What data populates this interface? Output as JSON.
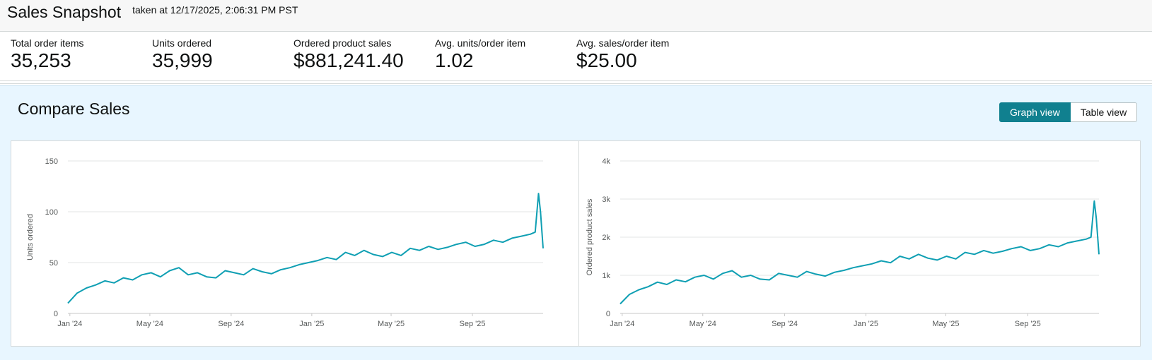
{
  "header": {
    "title": "Sales Snapshot",
    "taken_at": "taken at 12/17/2025, 2:06:31 PM PST"
  },
  "metrics": [
    {
      "label": "Total order items",
      "value": "35,253"
    },
    {
      "label": "Units ordered",
      "value": "35,999"
    },
    {
      "label": "Ordered product sales",
      "value": "$881,241.40"
    },
    {
      "label": "Avg. units/order item",
      "value": "1.02"
    },
    {
      "label": "Avg. sales/order item",
      "value": "$25.00"
    }
  ],
  "compare": {
    "title": "Compare Sales",
    "graph_view_label": "Graph view",
    "table_view_label": "Table view",
    "active_view": "Graph view"
  },
  "colors": {
    "series": "#0f9fb3",
    "active_button": "#10808f",
    "panel_bg": "#e8f6ff"
  },
  "chart_data": [
    {
      "type": "line",
      "ylabel": "Units ordered",
      "ylim": [
        0,
        150
      ],
      "yticks": [
        "0",
        "50",
        "100",
        "150"
      ],
      "xticks": [
        "Jan '24",
        "May '24",
        "Sep '24",
        "Jan '25",
        "May '25",
        "Sep '25"
      ],
      "xtick_dates": [
        "2024-01-01",
        "2024-05-01",
        "2024-09-01",
        "2025-01-01",
        "2025-05-01",
        "2025-09-01"
      ],
      "x_range": [
        "2023-12-29",
        "2025-12-17"
      ],
      "grid": true,
      "series": [
        {
          "x": [
            "2023-12-29",
            "2024-01-12",
            "2024-01-26",
            "2024-02-09",
            "2024-02-23",
            "2024-03-08",
            "2024-03-22",
            "2024-04-05",
            "2024-04-19",
            "2024-05-03",
            "2024-05-17",
            "2024-05-31",
            "2024-06-14",
            "2024-06-28",
            "2024-07-12",
            "2024-07-26",
            "2024-08-09",
            "2024-08-23",
            "2024-09-06",
            "2024-09-20",
            "2024-10-04",
            "2024-10-18",
            "2024-11-01",
            "2024-11-15",
            "2024-11-29",
            "2024-12-13",
            "2024-12-27",
            "2025-01-10",
            "2025-01-24",
            "2025-02-07",
            "2025-02-21",
            "2025-03-07",
            "2025-03-21",
            "2025-04-04",
            "2025-04-18",
            "2025-05-02",
            "2025-05-16",
            "2025-05-30",
            "2025-06-13",
            "2025-06-27",
            "2025-07-11",
            "2025-07-25",
            "2025-08-08",
            "2025-08-22",
            "2025-09-05",
            "2025-09-19",
            "2025-10-03",
            "2025-10-17",
            "2025-10-31",
            "2025-11-14",
            "2025-11-28",
            "2025-12-05",
            "2025-12-10",
            "2025-12-13",
            "2025-12-17"
          ],
          "values": [
            10,
            20,
            25,
            28,
            32,
            30,
            35,
            33,
            38,
            40,
            36,
            42,
            45,
            38,
            40,
            36,
            35,
            42,
            40,
            38,
            44,
            41,
            39,
            43,
            45,
            48,
            50,
            52,
            55,
            53,
            60,
            57,
            62,
            58,
            56,
            60,
            57,
            64,
            62,
            66,
            63,
            65,
            68,
            70,
            66,
            68,
            72,
            70,
            74,
            76,
            78,
            80,
            118,
            100,
            64
          ]
        }
      ]
    },
    {
      "type": "line",
      "ylabel": "Ordered product sales",
      "ylim": [
        0,
        4000
      ],
      "yticks": [
        "0",
        "1k",
        "2k",
        "3k",
        "4k"
      ],
      "xticks": [
        "Jan '24",
        "May '24",
        "Sep '24",
        "Jan '25",
        "May '25",
        "Sep '25"
      ],
      "xtick_dates": [
        "2024-01-01",
        "2024-05-01",
        "2024-09-01",
        "2025-01-01",
        "2025-05-01",
        "2025-09-01"
      ],
      "x_range": [
        "2023-12-29",
        "2025-12-17"
      ],
      "grid": true,
      "series": [
        {
          "x": [
            "2023-12-29",
            "2024-01-12",
            "2024-01-26",
            "2024-02-09",
            "2024-02-23",
            "2024-03-08",
            "2024-03-22",
            "2024-04-05",
            "2024-04-19",
            "2024-05-03",
            "2024-05-17",
            "2024-05-31",
            "2024-06-14",
            "2024-06-28",
            "2024-07-12",
            "2024-07-26",
            "2024-08-09",
            "2024-08-23",
            "2024-09-06",
            "2024-09-20",
            "2024-10-04",
            "2024-10-18",
            "2024-11-01",
            "2024-11-15",
            "2024-11-29",
            "2024-12-13",
            "2024-12-27",
            "2025-01-10",
            "2025-01-24",
            "2025-02-07",
            "2025-02-21",
            "2025-03-07",
            "2025-03-21",
            "2025-04-04",
            "2025-04-18",
            "2025-05-02",
            "2025-05-16",
            "2025-05-30",
            "2025-06-13",
            "2025-06-27",
            "2025-07-11",
            "2025-07-25",
            "2025-08-08",
            "2025-08-22",
            "2025-09-05",
            "2025-09-19",
            "2025-10-03",
            "2025-10-17",
            "2025-10-31",
            "2025-11-14",
            "2025-11-28",
            "2025-12-05",
            "2025-12-10",
            "2025-12-13",
            "2025-12-17"
          ],
          "values": [
            250,
            500,
            620,
            700,
            820,
            760,
            880,
            830,
            950,
            1000,
            900,
            1050,
            1120,
            950,
            1000,
            900,
            880,
            1050,
            1000,
            950,
            1100,
            1030,
            980,
            1080,
            1130,
            1200,
            1250,
            1300,
            1380,
            1330,
            1500,
            1430,
            1550,
            1450,
            1400,
            1500,
            1430,
            1600,
            1550,
            1650,
            1580,
            1630,
            1700,
            1750,
            1650,
            1700,
            1800,
            1750,
            1850,
            1900,
            1950,
            2000,
            2950,
            2500,
            1550
          ]
        }
      ]
    }
  ]
}
